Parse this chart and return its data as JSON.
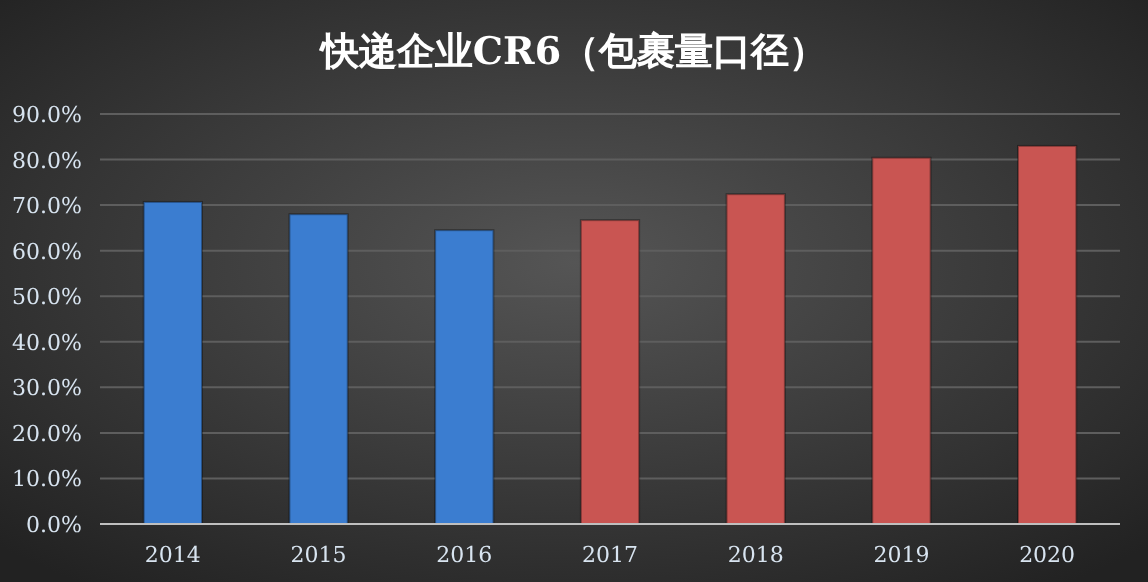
{
  "chart_data": {
    "type": "bar",
    "title": "快递企业CR6（包裹量口径）",
    "categories": [
      "2014",
      "2015",
      "2016",
      "2017",
      "2018",
      "2019",
      "2020"
    ],
    "values": [
      70.7,
      68.0,
      64.5,
      66.7,
      72.4,
      80.4,
      83.0
    ],
    "colors": [
      "#3b7dd0",
      "#3b7dd0",
      "#3b7dd0",
      "#c95552",
      "#c95552",
      "#c95552",
      "#c95552"
    ],
    "ylim": [
      0,
      90
    ],
    "yticks": [
      {
        "value": 0,
        "label": "0.0%"
      },
      {
        "value": 10,
        "label": "10.0%"
      },
      {
        "value": 20,
        "label": "20.0%"
      },
      {
        "value": 30,
        "label": "30.0%"
      },
      {
        "value": 40,
        "label": "40.0%"
      },
      {
        "value": 50,
        "label": "50.0%"
      },
      {
        "value": 60,
        "label": "60.0%"
      },
      {
        "value": 70,
        "label": "70.0%"
      },
      {
        "value": 80,
        "label": "80.0%"
      },
      {
        "value": 90,
        "label": "90.0%"
      }
    ],
    "grid": "y"
  }
}
